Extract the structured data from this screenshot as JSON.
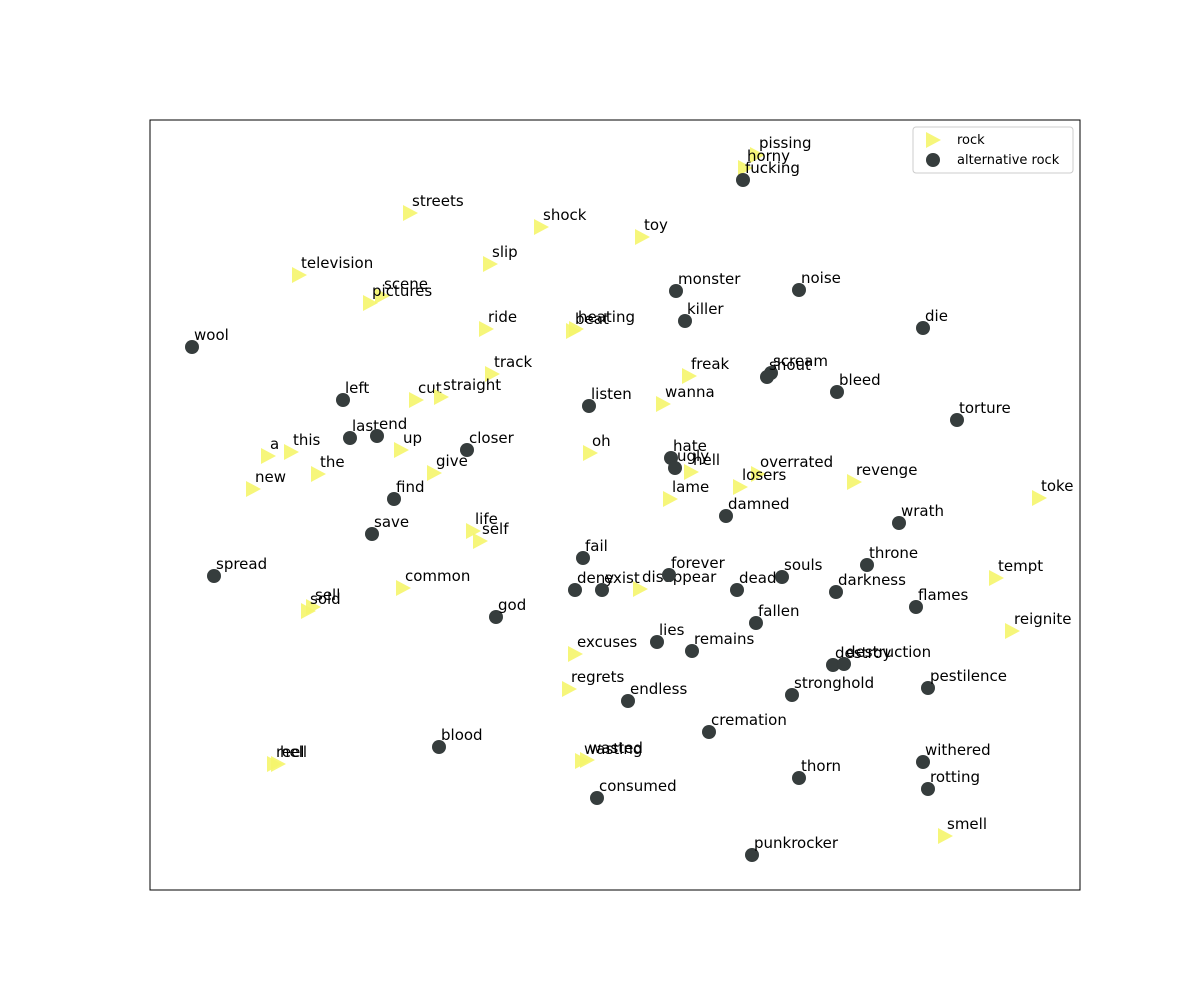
{
  "chart_data": {
    "type": "scatter",
    "title": "",
    "xlabel": "",
    "ylabel": "",
    "xlim": [
      0,
      930
    ],
    "ylim": [
      0,
      770
    ],
    "axis_ticks": false,
    "grid": false,
    "legend_position": "top-right",
    "series": [
      {
        "name": "rock",
        "marker": "triangle-right",
        "color": "#f5f56b",
        "points": [
          {
            "label": "pissing",
            "x": 607,
            "y": 735
          },
          {
            "label": "horny",
            "x": 595,
            "y": 722
          },
          {
            "label": "streets",
            "x": 260,
            "y": 677
          },
          {
            "label": "shock",
            "x": 391,
            "y": 663
          },
          {
            "label": "toy",
            "x": 492,
            "y": 653
          },
          {
            "label": "television",
            "x": 149,
            "y": 615
          },
          {
            "label": "slip",
            "x": 340,
            "y": 626
          },
          {
            "label": "scene",
            "x": 232,
            "y": 594
          },
          {
            "label": "pictures",
            "x": 220,
            "y": 587
          },
          {
            "label": "ride",
            "x": 336,
            "y": 561
          },
          {
            "label": "heating",
            "x": 426,
            "y": 561
          },
          {
            "label": "beat",
            "x": 423,
            "y": 559
          },
          {
            "label": "track",
            "x": 342,
            "y": 516
          },
          {
            "label": "freak",
            "x": 539,
            "y": 514
          },
          {
            "label": "cut",
            "x": 266,
            "y": 490
          },
          {
            "label": "straight",
            "x": 291,
            "y": 493
          },
          {
            "label": "wanna",
            "x": 513,
            "y": 486
          },
          {
            "label": "a",
            "x": 118,
            "y": 434
          },
          {
            "label": "this",
            "x": 141,
            "y": 438
          },
          {
            "label": "up",
            "x": 251,
            "y": 440
          },
          {
            "label": "oh",
            "x": 440,
            "y": 437
          },
          {
            "label": "hell",
            "x": 541,
            "y": 418
          },
          {
            "label": "the",
            "x": 168,
            "y": 416
          },
          {
            "label": "give",
            "x": 284,
            "y": 417
          },
          {
            "label": "overrated",
            "x": 608,
            "y": 416
          },
          {
            "label": "losers",
            "x": 590,
            "y": 403
          },
          {
            "label": "revenge",
            "x": 704,
            "y": 408
          },
          {
            "label": "new",
            "x": 103,
            "y": 401
          },
          {
            "label": "lame",
            "x": 520,
            "y": 391
          },
          {
            "label": "toke",
            "x": 889,
            "y": 392
          },
          {
            "label": "life",
            "x": 323,
            "y": 359
          },
          {
            "label": "self",
            "x": 330,
            "y": 349
          },
          {
            "label": "tempt",
            "x": 846,
            "y": 312
          },
          {
            "label": "common",
            "x": 253,
            "y": 302
          },
          {
            "label": "disappear",
            "x": 490,
            "y": 301
          },
          {
            "label": "sell",
            "x": 163,
            "y": 283
          },
          {
            "label": "sold",
            "x": 158,
            "y": 279
          },
          {
            "label": "reignite",
            "x": 862,
            "y": 259
          },
          {
            "label": "excuses",
            "x": 425,
            "y": 236
          },
          {
            "label": "regrets",
            "x": 419,
            "y": 201
          },
          {
            "label": "wasted",
            "x": 437,
            "y": 130
          },
          {
            "label": "wasting",
            "x": 432,
            "y": 129
          },
          {
            "label": "hell",
            "x": 128,
            "y": 126
          },
          {
            "label": "reel",
            "x": 124,
            "y": 126
          },
          {
            "label": "smell",
            "x": 795,
            "y": 54
          }
        ]
      },
      {
        "name": "alternative rock",
        "marker": "circle",
        "color": "#363d3d",
        "points": [
          {
            "label": "fucking",
            "x": 593,
            "y": 710
          },
          {
            "label": "monster",
            "x": 526,
            "y": 599
          },
          {
            "label": "noise",
            "x": 649,
            "y": 600
          },
          {
            "label": "killer",
            "x": 535,
            "y": 569
          },
          {
            "label": "die",
            "x": 773,
            "y": 562
          },
          {
            "label": "wool",
            "x": 42,
            "y": 543
          },
          {
            "label": "scream",
            "x": 621,
            "y": 517
          },
          {
            "label": "shout",
            "x": 617,
            "y": 513
          },
          {
            "label": "bleed",
            "x": 687,
            "y": 498
          },
          {
            "label": "left",
            "x": 193,
            "y": 490
          },
          {
            "label": "listen",
            "x": 439,
            "y": 484
          },
          {
            "label": "torture",
            "x": 807,
            "y": 470
          },
          {
            "label": "last",
            "x": 200,
            "y": 452
          },
          {
            "label": "end",
            "x": 227,
            "y": 454
          },
          {
            "label": "closer",
            "x": 317,
            "y": 440
          },
          {
            "label": "hate",
            "x": 521,
            "y": 432
          },
          {
            "label": "ugly",
            "x": 525,
            "y": 422
          },
          {
            "label": "find",
            "x": 244,
            "y": 391
          },
          {
            "label": "damned",
            "x": 576,
            "y": 374
          },
          {
            "label": "wrath",
            "x": 749,
            "y": 367
          },
          {
            "label": "save",
            "x": 222,
            "y": 356
          },
          {
            "label": "fail",
            "x": 433,
            "y": 332
          },
          {
            "label": "throne",
            "x": 717,
            "y": 325
          },
          {
            "label": "forever",
            "x": 519,
            "y": 315
          },
          {
            "label": "souls",
            "x": 632,
            "y": 313
          },
          {
            "label": "spread",
            "x": 64,
            "y": 314
          },
          {
            "label": "deny",
            "x": 425,
            "y": 300
          },
          {
            "label": "exist",
            "x": 452,
            "y": 300
          },
          {
            "label": "dead",
            "x": 587,
            "y": 300
          },
          {
            "label": "darkness",
            "x": 686,
            "y": 298
          },
          {
            "label": "flames",
            "x": 766,
            "y": 283
          },
          {
            "label": "god",
            "x": 346,
            "y": 273
          },
          {
            "label": "fallen",
            "x": 606,
            "y": 267
          },
          {
            "label": "lies",
            "x": 507,
            "y": 248
          },
          {
            "label": "remains",
            "x": 542,
            "y": 239
          },
          {
            "label": "destroy",
            "x": 683,
            "y": 225
          },
          {
            "label": "destruction",
            "x": 694,
            "y": 226
          },
          {
            "label": "pestilence",
            "x": 778,
            "y": 202
          },
          {
            "label": "stronghold",
            "x": 642,
            "y": 195
          },
          {
            "label": "endless",
            "x": 478,
            "y": 189
          },
          {
            "label": "cremation",
            "x": 559,
            "y": 158
          },
          {
            "label": "blood",
            "x": 289,
            "y": 143
          },
          {
            "label": "withered",
            "x": 773,
            "y": 128
          },
          {
            "label": "thorn",
            "x": 649,
            "y": 112
          },
          {
            "label": "rotting",
            "x": 778,
            "y": 101
          },
          {
            "label": "consumed",
            "x": 447,
            "y": 92
          },
          {
            "label": "punkrocker",
            "x": 602,
            "y": 35
          }
        ]
      }
    ]
  }
}
